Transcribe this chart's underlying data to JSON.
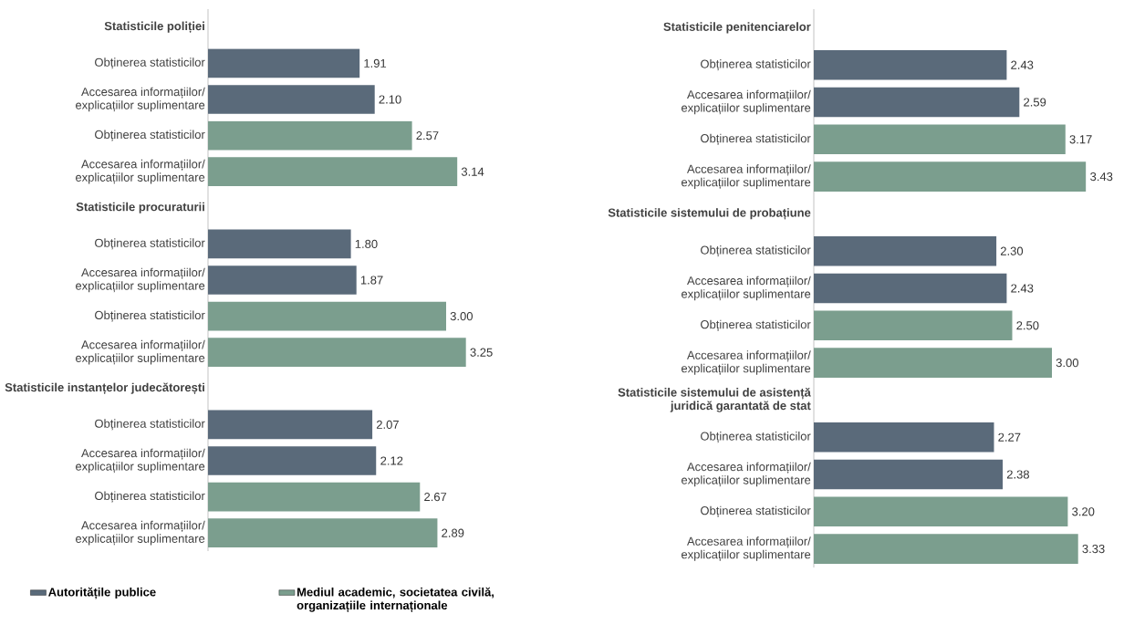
{
  "chart_data": [
    {
      "type": "bar",
      "orientation": "horizontal",
      "legend": "bottom",
      "categories": [
        "Statisticile poliției",
        "Obținerea statisticilor",
        "Accesarea informațiilor/ explicațiilor suplimentare",
        "Obținerea statisticilor",
        "Accesarea informațiilor/ explicațiilor suplimentare",
        "Statisticile procuraturii",
        "Obținerea statisticilor",
        "Accesarea informațiilor/ explicațiilor suplimentare",
        "Obținerea statisticilor",
        "Accesarea informațiilor/ explicațiilor suplimentare",
        "Statisticile instanțelor judecătorești",
        "Obținerea statisticilor",
        "Accesarea informațiilor/ explicațiilor suplimentare",
        "Obținerea statisticilor",
        "Accesarea informațiilor/ explicațiilor suplimentare"
      ],
      "series": [
        {
          "name": "Autoritățile publice",
          "color": "#5a6a7a",
          "values": [
            null,
            1.91,
            2.1,
            null,
            null,
            null,
            1.8,
            1.87,
            null,
            null,
            null,
            2.07,
            2.12,
            null,
            null
          ],
          "value_labels": [
            null,
            "1.91",
            "2.10",
            null,
            null,
            null,
            "1.80",
            "1.87",
            null,
            null,
            null,
            "2.07",
            "2.12",
            null,
            null
          ]
        },
        {
          "name": "Mediul academic, societatea civilă, organizațiile internaționale",
          "color": "#7b9e8e",
          "values": [
            null,
            null,
            null,
            2.57,
            3.14,
            null,
            null,
            null,
            3.0,
            3.25,
            null,
            null,
            null,
            2.67,
            2.89
          ],
          "value_labels": [
            null,
            null,
            null,
            "2.57",
            "3.14",
            null,
            null,
            null,
            "3.00",
            "3.25",
            null,
            null,
            null,
            "2.67",
            "2.89"
          ]
        }
      ]
    },
    {
      "type": "bar",
      "orientation": "horizontal",
      "categories": [
        "Statisticile penitenciarelor",
        "Obținerea statisticilor",
        "Accesarea informațiilor/ explicațiilor suplimentare",
        "Obținerea statisticilor",
        "Accesarea informațiilor/ explicațiilor suplimentare",
        "Statisticile sistemului de probațiune",
        "Obținerea statisticilor",
        "Accesarea informațiilor/ explicațiilor suplimentare",
        "Obținerea statisticilor",
        "Accesarea informațiilor/ explicațiilor suplimentare",
        "Statisticile sistemului de asistență juridică garantată de stat",
        "Obținerea statisticilor",
        "Accesarea informațiilor/ explicațiilor suplimentare",
        "Obținerea statisticilor",
        "Accesarea informațiilor/ explicațiilor suplimentare"
      ],
      "series": [
        {
          "color": "#5a6a7a",
          "values": [
            null,
            2.43,
            2.59,
            null,
            null,
            null,
            2.3,
            2.43,
            null,
            null,
            null,
            2.27,
            2.38,
            null,
            null
          ],
          "value_labels": [
            null,
            "2.43",
            "2.59",
            null,
            null,
            null,
            "2.30",
            "2.43",
            null,
            null,
            null,
            "2.27",
            "2.38",
            null,
            null
          ]
        },
        {
          "color": "#7b9e8e",
          "values": [
            null,
            null,
            null,
            3.17,
            3.43,
            null,
            null,
            null,
            2.5,
            3.0,
            null,
            null,
            null,
            3.2,
            3.33
          ],
          "value_labels": [
            null,
            null,
            null,
            "3.17",
            "3.43",
            null,
            null,
            null,
            "2.50",
            "3.00",
            null,
            null,
            null,
            "3.20",
            "3.33"
          ]
        }
      ]
    }
  ]
}
